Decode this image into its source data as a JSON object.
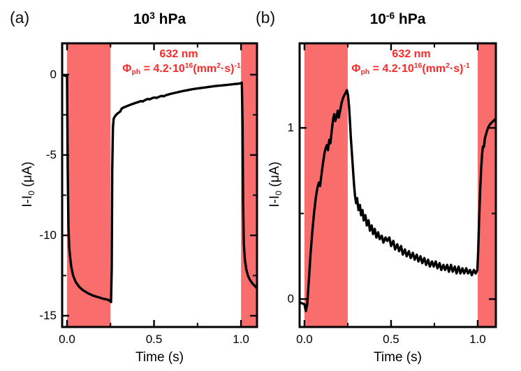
{
  "colors": {
    "band": "#f96d6d",
    "annotation_red": "#fb2a2a",
    "curve": "#000000",
    "frame": "#000000",
    "background": "#ffffff"
  },
  "chart_data": [
    {
      "type": "line",
      "panel_label": "(a)",
      "title_segments": [
        {
          "t": "10"
        },
        {
          "t": "3",
          "s": "sup"
        },
        {
          "t": " hPa"
        }
      ],
      "xlabel": "Time (s)",
      "ylabel_segments": [
        {
          "t": "I-I"
        },
        {
          "t": "0",
          "s": "sub"
        },
        {
          "t": " (μA)"
        }
      ],
      "annotation": {
        "line1": "632 nm",
        "line2_segments": [
          {
            "t": "Φ"
          },
          {
            "t": "ph",
            "s": "sub"
          },
          {
            "t": " = 4.2·10"
          },
          {
            "t": "16",
            "s": "sup"
          },
          {
            "t": "(mm"
          },
          {
            "t": "2",
            "s": "sup"
          },
          {
            "t": "·s)"
          },
          {
            "t": "-1",
            "s": "sup"
          }
        ]
      },
      "xlim": [
        -0.028,
        1.092
      ],
      "ylim": [
        -15.7,
        1.95
      ],
      "grid": false,
      "legend": null,
      "xticks": {
        "major": [
          {
            "v": 0.0,
            "label": "0.0"
          },
          {
            "v": 0.5,
            "label": "0.5"
          },
          {
            "v": 1.0,
            "label": "1.0"
          }
        ],
        "minor": [
          0.25,
          0.75
        ]
      },
      "yticks": {
        "major": [
          {
            "v": 0,
            "label": "0"
          },
          {
            "v": -5,
            "label": "-5"
          },
          {
            "v": -10,
            "label": "-10"
          },
          {
            "v": -15,
            "label": "-15"
          }
        ],
        "minor": [
          -2.5,
          -7.5,
          -12.5
        ]
      },
      "shaded_bands_x": [
        [
          0.0,
          0.25
        ],
        [
          1.0,
          1.092
        ]
      ],
      "series": [
        [
          -0.015,
          -0.05
        ],
        [
          0,
          -0.1
        ],
        [
          0.004,
          -6
        ],
        [
          0.008,
          -9.5
        ],
        [
          0.013,
          -10.8
        ],
        [
          0.018,
          -11.4
        ],
        [
          0.025,
          -12
        ],
        [
          0.035,
          -12.5
        ],
        [
          0.05,
          -12.9
        ],
        [
          0.07,
          -13.2
        ],
        [
          0.09,
          -13.4
        ],
        [
          0.12,
          -13.6
        ],
        [
          0.15,
          -13.75
        ],
        [
          0.18,
          -13.85
        ],
        [
          0.21,
          -13.95
        ],
        [
          0.235,
          -14.0
        ],
        [
          0.248,
          -14.1
        ],
        [
          0.253,
          -14.15
        ],
        [
          0.257,
          -12
        ],
        [
          0.26,
          -6
        ],
        [
          0.264,
          -3.3
        ],
        [
          0.268,
          -2.75
        ],
        [
          0.278,
          -2.55
        ],
        [
          0.29,
          -2.42
        ],
        [
          0.305,
          -2.3
        ],
        [
          0.315,
          -2.1
        ],
        [
          0.33,
          -2.02
        ],
        [
          0.35,
          -1.93
        ],
        [
          0.37,
          -1.85
        ],
        [
          0.39,
          -1.77
        ],
        [
          0.41,
          -1.7
        ],
        [
          0.425,
          -1.64
        ],
        [
          0.435,
          -1.67
        ],
        [
          0.45,
          -1.57
        ],
        [
          0.465,
          -1.51
        ],
        [
          0.475,
          -1.54
        ],
        [
          0.49,
          -1.46
        ],
        [
          0.505,
          -1.42
        ],
        [
          0.515,
          -1.45
        ],
        [
          0.53,
          -1.37
        ],
        [
          0.545,
          -1.32
        ],
        [
          0.555,
          -1.35
        ],
        [
          0.57,
          -1.27
        ],
        [
          0.59,
          -1.21
        ],
        [
          0.61,
          -1.16
        ],
        [
          0.63,
          -1.11
        ],
        [
          0.65,
          -1.06
        ],
        [
          0.67,
          -1.01
        ],
        [
          0.69,
          -0.97
        ],
        [
          0.71,
          -0.93
        ],
        [
          0.73,
          -0.89
        ],
        [
          0.75,
          -0.86
        ],
        [
          0.77,
          -0.83
        ],
        [
          0.79,
          -0.8
        ],
        [
          0.81,
          -0.77
        ],
        [
          0.83,
          -0.74
        ],
        [
          0.85,
          -0.71
        ],
        [
          0.87,
          -0.69
        ],
        [
          0.89,
          -0.67
        ],
        [
          0.905,
          -0.65
        ],
        [
          0.92,
          -0.64
        ],
        [
          0.935,
          -0.62
        ],
        [
          0.95,
          -0.6
        ],
        [
          0.965,
          -0.58
        ],
        [
          0.98,
          -0.57
        ],
        [
          0.995,
          -0.54
        ],
        [
          1.005,
          -0.5
        ],
        [
          1.009,
          -3
        ],
        [
          1.012,
          -8
        ],
        [
          1.016,
          -10.5
        ],
        [
          1.022,
          -11.5
        ],
        [
          1.03,
          -12.1
        ],
        [
          1.04,
          -12.5
        ],
        [
          1.05,
          -12.75
        ],
        [
          1.06,
          -12.9
        ],
        [
          1.07,
          -13.05
        ],
        [
          1.08,
          -13.15
        ],
        [
          1.092,
          -13.3
        ]
      ]
    },
    {
      "type": "line",
      "panel_label": "(b)",
      "title_segments": [
        {
          "t": "10"
        },
        {
          "t": "-6",
          "s": "sup"
        },
        {
          "t": " hPa"
        }
      ],
      "xlabel": "Time (s)",
      "ylabel_segments": [
        {
          "t": "I-I"
        },
        {
          "t": "0",
          "s": "sub"
        },
        {
          "t": " (μA)"
        }
      ],
      "annotation": {
        "line1": "632 nm",
        "line2_segments": [
          {
            "t": "Φ"
          },
          {
            "t": "ph",
            "s": "sub"
          },
          {
            "t": " = 4.2·10"
          },
          {
            "t": "16",
            "s": "sup"
          },
          {
            "t": "(mm"
          },
          {
            "t": "2",
            "s": "sup"
          },
          {
            "t": "·s)"
          },
          {
            "t": "-1",
            "s": "sup"
          }
        ]
      },
      "xlim": [
        -0.028,
        1.105
      ],
      "ylim": [
        -0.163,
        1.494
      ],
      "grid": false,
      "legend": null,
      "xticks": {
        "major": [
          {
            "v": 0.0,
            "label": "0.0"
          },
          {
            "v": 0.5,
            "label": "0.5"
          },
          {
            "v": 1.0,
            "label": "1.0"
          }
        ],
        "minor": [
          0.25,
          0.75
        ]
      },
      "yticks": {
        "major": [
          {
            "v": 0,
            "label": "0"
          },
          {
            "v": 1,
            "label": "1"
          }
        ],
        "minor": [
          0.5
        ]
      },
      "shaded_bands_x": [
        [
          0.0,
          0.25
        ],
        [
          1.0,
          1.105
        ]
      ],
      "series": [
        [
          -0.025,
          -0.02
        ],
        [
          0,
          -0.03
        ],
        [
          0.008,
          -0.07
        ],
        [
          0.016,
          -0.03
        ],
        [
          0.025,
          0.1
        ],
        [
          0.035,
          0.26
        ],
        [
          0.045,
          0.39
        ],
        [
          0.055,
          0.5
        ],
        [
          0.065,
          0.59
        ],
        [
          0.075,
          0.65
        ],
        [
          0.083,
          0.68
        ],
        [
          0.09,
          0.66
        ],
        [
          0.1,
          0.74
        ],
        [
          0.108,
          0.8
        ],
        [
          0.115,
          0.85
        ],
        [
          0.122,
          0.88
        ],
        [
          0.13,
          0.9
        ],
        [
          0.136,
          0.87
        ],
        [
          0.143,
          0.93
        ],
        [
          0.15,
          0.91
        ],
        [
          0.157,
          0.98
        ],
        [
          0.165,
          1.05
        ],
        [
          0.172,
          1.08
        ],
        [
          0.178,
          1.04
        ],
        [
          0.186,
          1.07
        ],
        [
          0.192,
          1.1
        ],
        [
          0.198,
          1.06
        ],
        [
          0.206,
          1.1
        ],
        [
          0.215,
          1.15
        ],
        [
          0.225,
          1.18
        ],
        [
          0.235,
          1.2
        ],
        [
          0.245,
          1.22
        ],
        [
          0.252,
          1.19
        ],
        [
          0.258,
          1.12
        ],
        [
          0.263,
          1.03
        ],
        [
          0.268,
          0.94
        ],
        [
          0.274,
          0.85
        ],
        [
          0.28,
          0.76
        ],
        [
          0.286,
          0.67
        ],
        [
          0.292,
          0.6
        ],
        [
          0.298,
          0.56
        ],
        [
          0.304,
          0.59
        ],
        [
          0.312,
          0.52
        ],
        [
          0.32,
          0.55
        ],
        [
          0.327,
          0.49
        ],
        [
          0.335,
          0.52
        ],
        [
          0.342,
          0.46
        ],
        [
          0.352,
          0.49
        ],
        [
          0.36,
          0.43
        ],
        [
          0.37,
          0.46
        ],
        [
          0.378,
          0.4
        ],
        [
          0.388,
          0.43
        ],
        [
          0.396,
          0.38
        ],
        [
          0.406,
          0.41
        ],
        [
          0.415,
          0.36
        ],
        [
          0.425,
          0.39
        ],
        [
          0.434,
          0.35
        ],
        [
          0.446,
          0.37
        ],
        [
          0.456,
          0.33
        ],
        [
          0.468,
          0.36
        ],
        [
          0.478,
          0.34
        ],
        [
          0.49,
          0.36
        ],
        [
          0.5,
          0.31
        ],
        [
          0.513,
          0.34
        ],
        [
          0.523,
          0.29
        ],
        [
          0.536,
          0.32
        ],
        [
          0.546,
          0.28
        ],
        [
          0.558,
          0.31
        ],
        [
          0.568,
          0.26
        ],
        [
          0.58,
          0.29
        ],
        [
          0.59,
          0.25
        ],
        [
          0.603,
          0.28
        ],
        [
          0.613,
          0.24
        ],
        [
          0.626,
          0.27
        ],
        [
          0.636,
          0.23
        ],
        [
          0.648,
          0.26
        ],
        [
          0.658,
          0.22
        ],
        [
          0.67,
          0.25
        ],
        [
          0.68,
          0.21
        ],
        [
          0.692,
          0.24
        ],
        [
          0.702,
          0.2
        ],
        [
          0.714,
          0.23
        ],
        [
          0.724,
          0.19
        ],
        [
          0.736,
          0.22
        ],
        [
          0.746,
          0.19
        ],
        [
          0.758,
          0.22
        ],
        [
          0.768,
          0.18
        ],
        [
          0.78,
          0.21
        ],
        [
          0.79,
          0.17
        ],
        [
          0.802,
          0.2
        ],
        [
          0.812,
          0.17
        ],
        [
          0.824,
          0.2
        ],
        [
          0.834,
          0.16
        ],
        [
          0.846,
          0.2
        ],
        [
          0.856,
          0.16
        ],
        [
          0.868,
          0.19
        ],
        [
          0.878,
          0.15
        ],
        [
          0.89,
          0.19
        ],
        [
          0.9,
          0.15
        ],
        [
          0.912,
          0.18
        ],
        [
          0.922,
          0.15
        ],
        [
          0.934,
          0.18
        ],
        [
          0.944,
          0.15
        ],
        [
          0.956,
          0.17
        ],
        [
          0.966,
          0.14
        ],
        [
          0.978,
          0.17
        ],
        [
          0.988,
          0.15
        ],
        [
          0.998,
          0.17
        ],
        [
          1.003,
          0.28
        ],
        [
          1.008,
          0.45
        ],
        [
          1.014,
          0.62
        ],
        [
          1.02,
          0.76
        ],
        [
          1.026,
          0.85
        ],
        [
          1.03,
          0.89
        ],
        [
          1.036,
          0.89
        ],
        [
          1.042,
          0.94
        ],
        [
          1.05,
          0.97
        ],
        [
          1.06,
          1.0
        ],
        [
          1.07,
          1.02
        ],
        [
          1.08,
          1.03
        ],
        [
          1.09,
          1.04
        ],
        [
          1.1,
          1.05
        ]
      ]
    }
  ]
}
